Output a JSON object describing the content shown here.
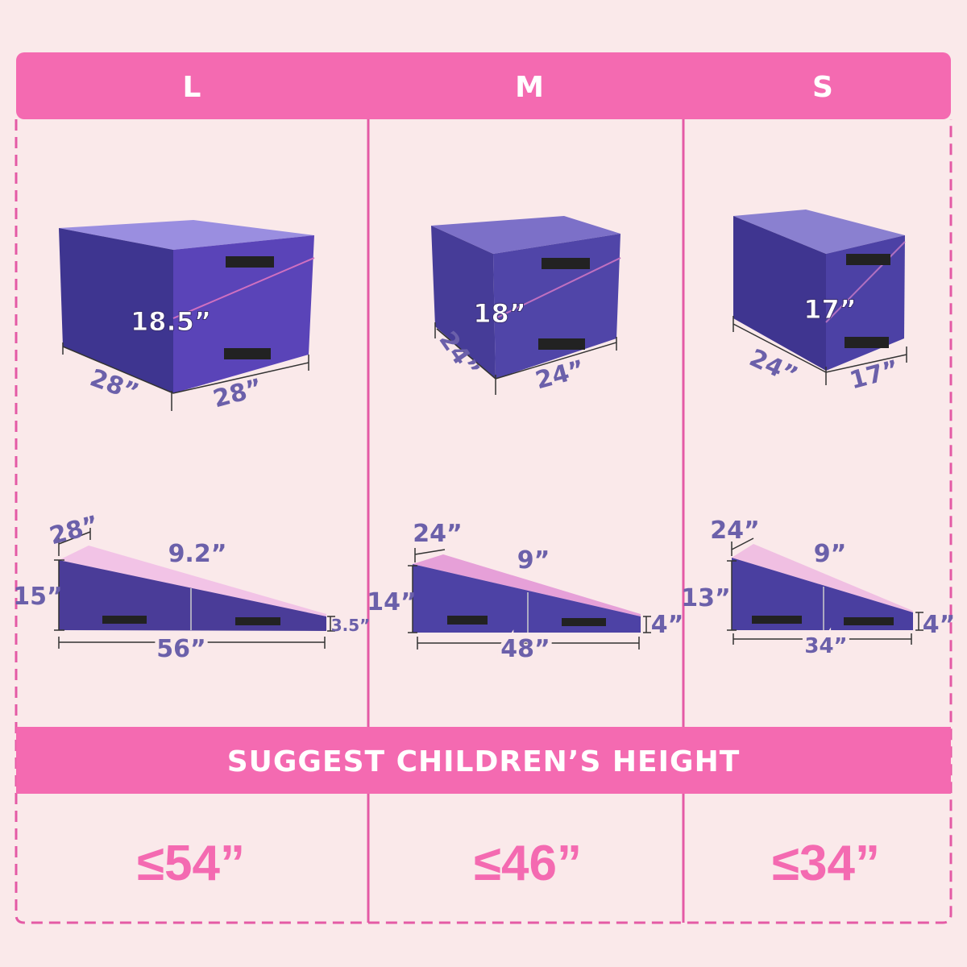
{
  "colors": {
    "accent": "#f46ab1",
    "background": "#fae9ea",
    "mat_purple": "#4e3fa0",
    "mat_pink": "#f2c3e6",
    "label": "#6b60aa"
  },
  "sizes": [
    {
      "label": "L",
      "cube": {
        "height": "18.5”",
        "depth": "28”",
        "width": "28”"
      },
      "wedge": {
        "width": "28”",
        "top": "9.2”",
        "high": "15”",
        "low": "3.5”",
        "length": "56”"
      },
      "child_height": "≤54”"
    },
    {
      "label": "M",
      "cube": {
        "height": "18”",
        "depth": "24”",
        "width": "24”"
      },
      "wedge": {
        "width": "24”",
        "top": "9”",
        "high": "14”",
        "low": "4”",
        "length": "48”"
      },
      "child_height": "≤46”"
    },
    {
      "label": "S",
      "cube": {
        "height": "17”",
        "depth": "24”",
        "width": "17”"
      },
      "wedge": {
        "width": "24”",
        "top": "9”",
        "high": "13”",
        "low": "4”",
        "length": "34”"
      },
      "child_height": "≤34”"
    }
  ],
  "banner": "SUGGEST CHILDREN’S HEIGHT"
}
